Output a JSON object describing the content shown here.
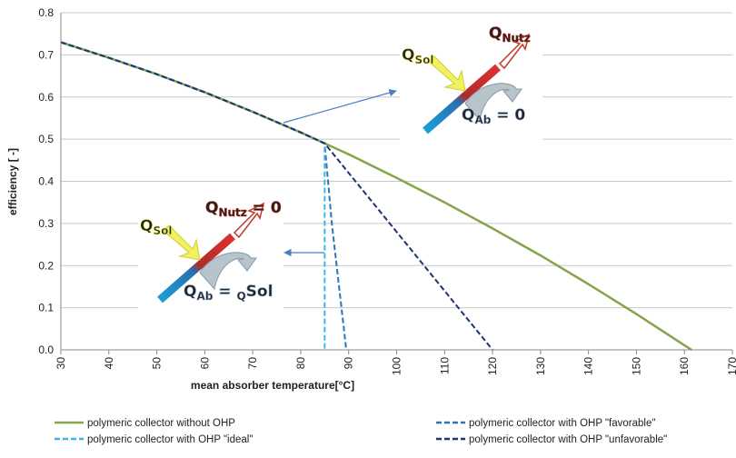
{
  "chart_data": {
    "type": "line",
    "xlabel": "mean absorber temperature[°C]",
    "ylabel": "efficiency  [ -]",
    "xlim": [
      30,
      170
    ],
    "xticks": [
      30,
      40,
      50,
      60,
      70,
      80,
      90,
      100,
      110,
      120,
      130,
      140,
      150,
      160,
      170
    ],
    "ylim": [
      0,
      0.8
    ],
    "yticks": [
      {
        "value": 0,
        "label": "0.0"
      },
      0.1,
      0.2,
      0.3,
      0.4,
      0.5,
      0.6,
      0.7,
      0.8
    ],
    "grid": true,
    "series": [
      {
        "name": "polymeric collector without OHP",
        "color": "#86a44a",
        "dash": "solid",
        "x": [
          30,
          40,
          50,
          60,
          70,
          80,
          85,
          90,
          100,
          110,
          120,
          130,
          140,
          150,
          160,
          161.5
        ],
        "values": [
          0.73,
          0.693,
          0.654,
          0.611,
          0.565,
          0.516,
          0.49,
          0.464,
          0.408,
          0.35,
          0.288,
          0.224,
          0.156,
          0.085,
          0.011,
          0
        ]
      },
      {
        "name": "polymeric collector with OHP \"favorable\"",
        "color": "#2e75b6",
        "dash": "dashed",
        "x": [
          30,
          40,
          50,
          60,
          70,
          80,
          85,
          86.5,
          89.5
        ],
        "values": [
          0.73,
          0.693,
          0.654,
          0.611,
          0.565,
          0.516,
          0.49,
          0.3,
          0
        ]
      },
      {
        "name": "polymeric collector with OHP \"ideal\"",
        "color": "#3fb6e8",
        "dash": "dashed",
        "x": [
          30,
          40,
          50,
          60,
          70,
          80,
          85,
          85
        ],
        "values": [
          0.73,
          0.693,
          0.654,
          0.611,
          0.565,
          0.516,
          0.49,
          0
        ]
      },
      {
        "name": "polymeric collector with OHP \"unfavorable\"",
        "color": "#1f3370",
        "dash": "dashed",
        "x": [
          30,
          40,
          50,
          60,
          70,
          80,
          85,
          120
        ],
        "values": [
          0.73,
          0.693,
          0.654,
          0.611,
          0.565,
          0.516,
          0.49,
          0
        ]
      }
    ],
    "insets": [
      {
        "labels": [
          {
            "parts": [
              "Q",
              "Nutz"
            ]
          },
          {
            "parts": [
              "Q",
              "Sol"
            ]
          },
          {
            "parts": [
              "Q",
              "Ab",
              " = 0"
            ]
          }
        ]
      },
      {
        "labels": [
          {
            "parts": [
              "Q",
              "Nutz",
              " = 0"
            ]
          },
          {
            "parts": [
              "Q",
              "Sol"
            ]
          },
          {
            "parts": [
              "Q",
              "Ab",
              " = ",
              "Q",
              "Sol"
            ]
          }
        ]
      }
    ]
  }
}
